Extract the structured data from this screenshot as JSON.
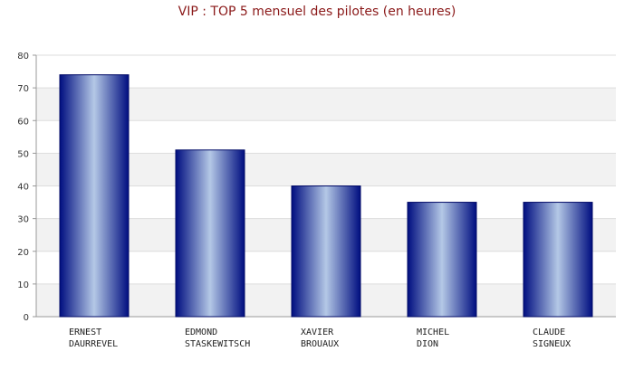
{
  "chart_data": {
    "type": "bar",
    "title": "VIP : TOP 5 mensuel des pilotes (en heures)",
    "xlabel": "",
    "ylabel": "",
    "categories": [
      [
        "ERNEST",
        "DAURREVEL"
      ],
      [
        "EDMOND",
        "STASKEWITSCH"
      ],
      [
        "XAVIER",
        "BROUAUX"
      ],
      [
        "MICHEL",
        "DION"
      ],
      [
        "CLAUDE",
        "SIGNEUX"
      ]
    ],
    "values": [
      74,
      51,
      40,
      35,
      35
    ],
    "ylim": [
      0,
      80
    ],
    "yticks": [
      0,
      10,
      20,
      30,
      40,
      50,
      60,
      70,
      80
    ],
    "grid": true,
    "legend": "none",
    "colors": {
      "bar_dark": "#000e80",
      "bar_light": "#b4c8e6",
      "band": "#f2f2f2",
      "title": "#8b1a1a"
    }
  }
}
